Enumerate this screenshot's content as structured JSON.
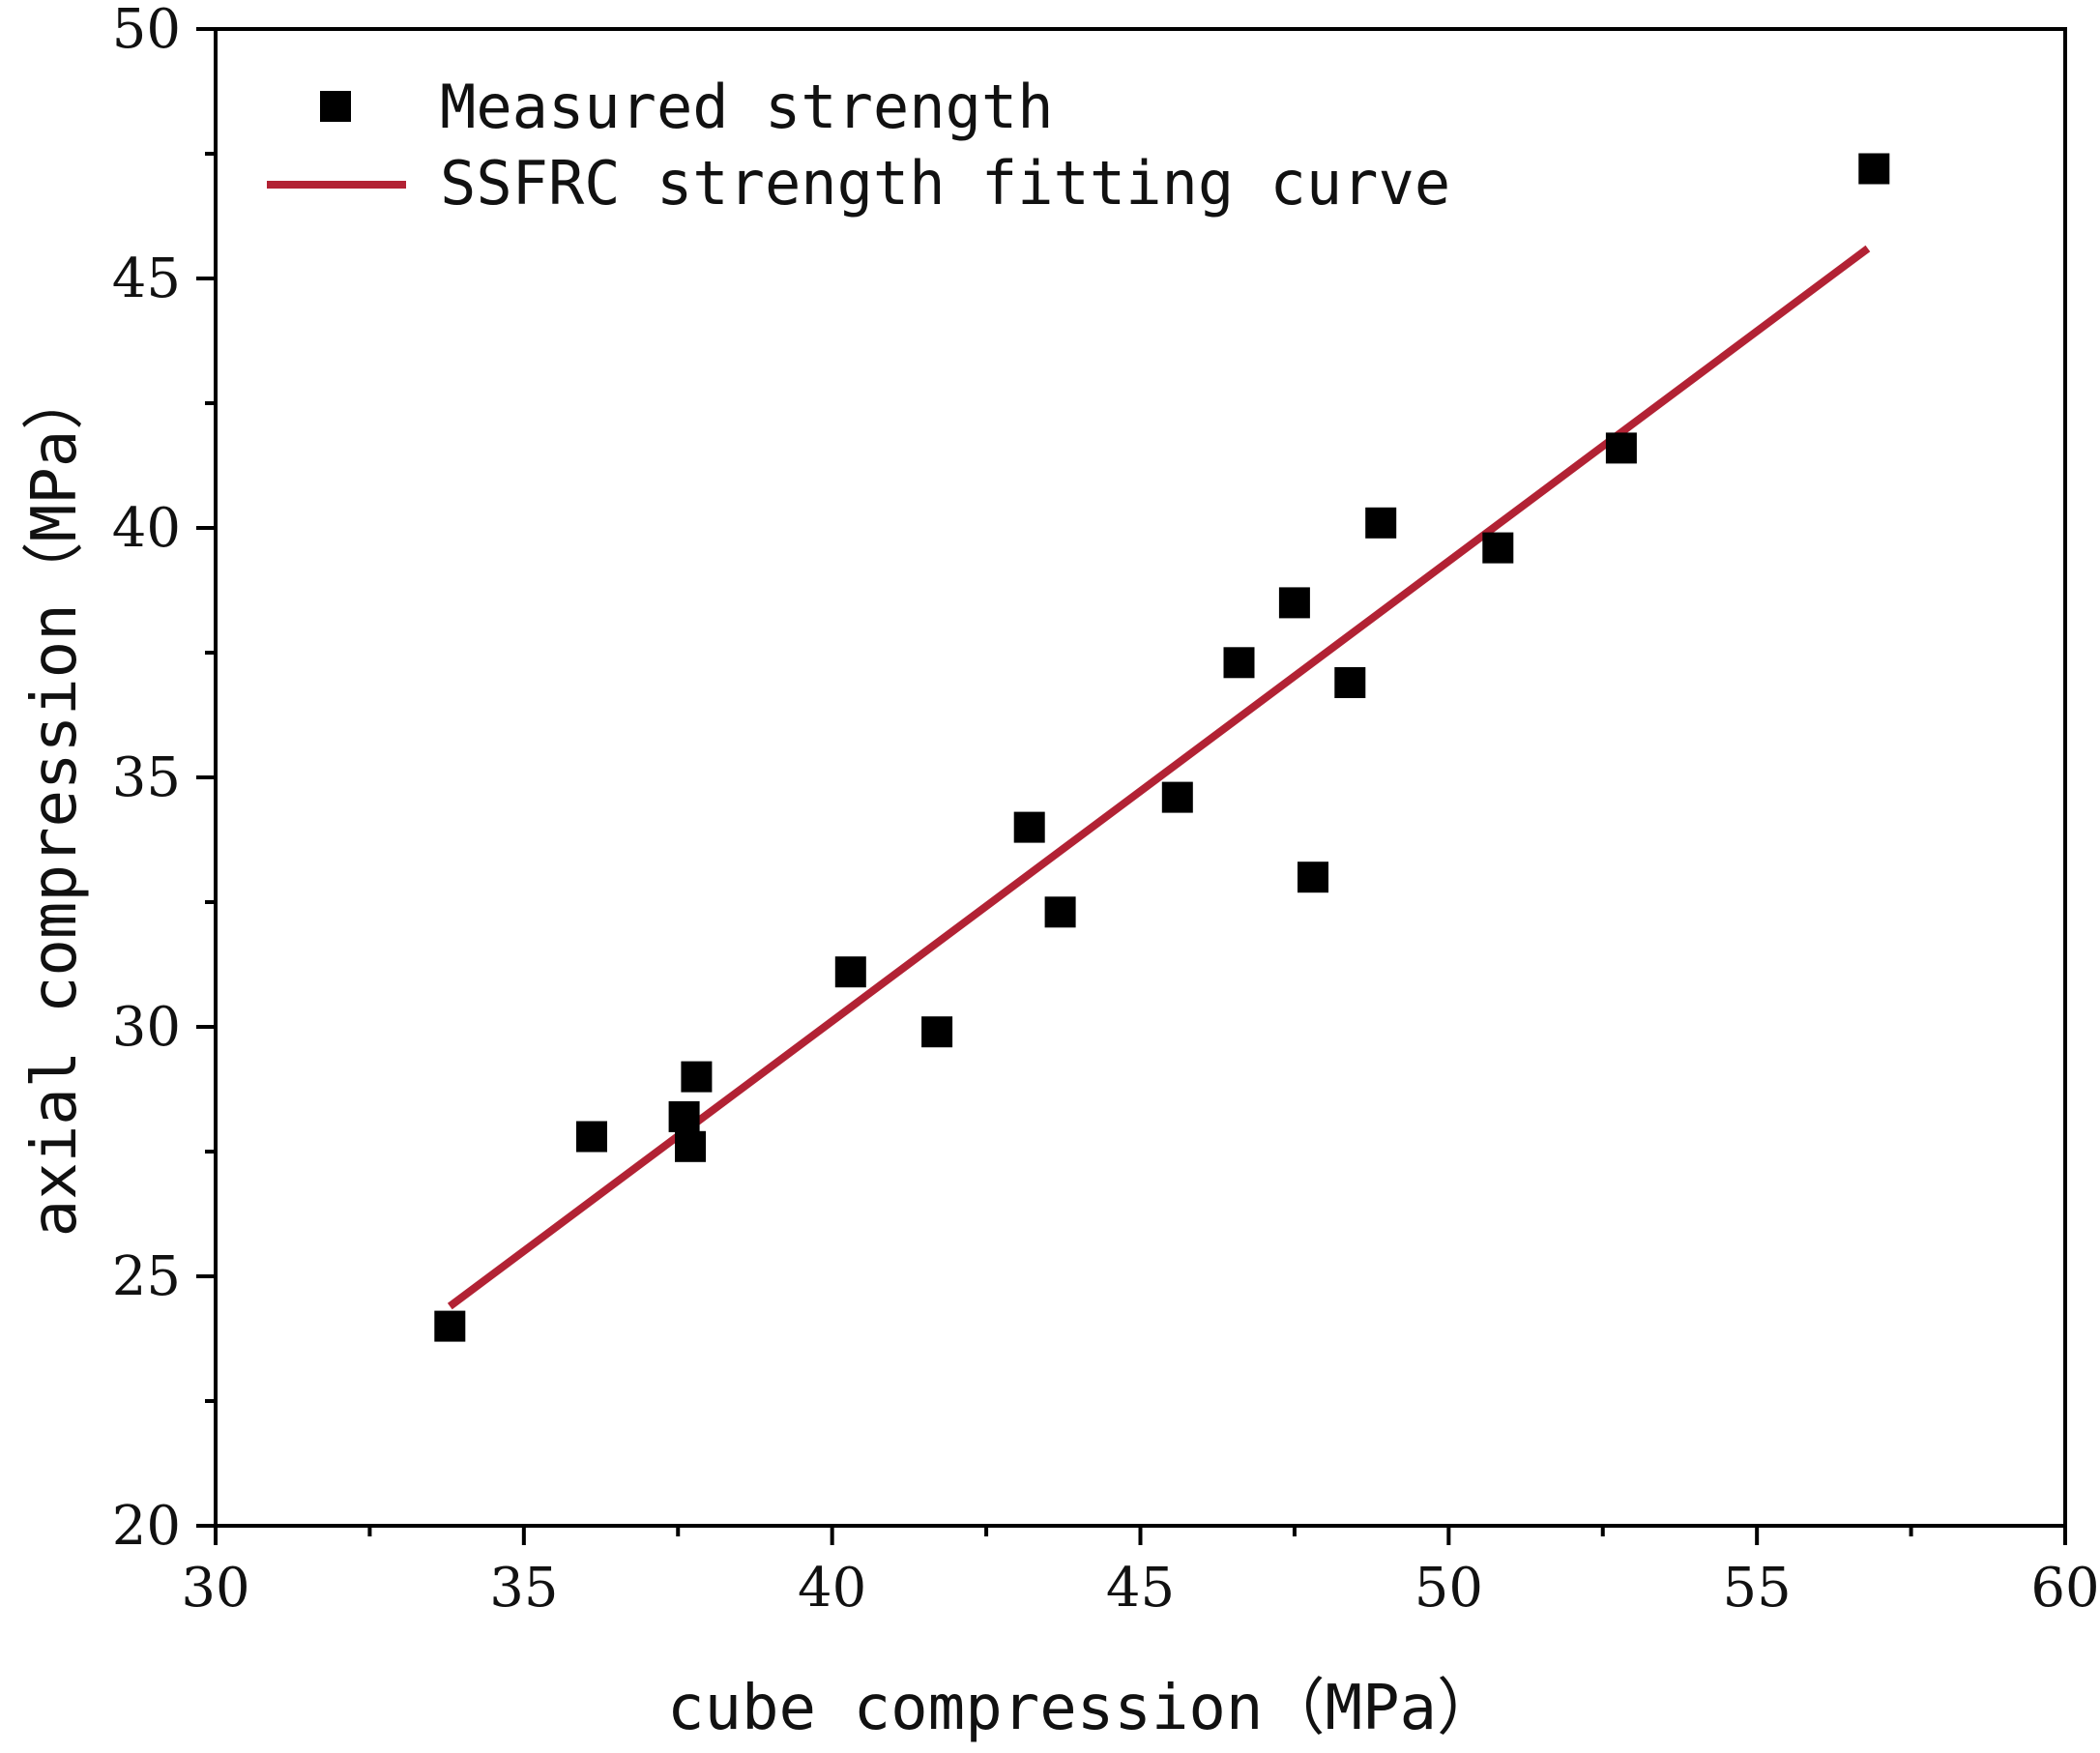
{
  "chart_data": {
    "type": "scatter",
    "title": "",
    "xlabel": "cube compression（MPa）",
    "ylabel": "axial compression（MPa）",
    "xlim": [
      30,
      60
    ],
    "ylim": [
      20,
      50
    ],
    "x_major_ticks": [
      30,
      35,
      40,
      45,
      50,
      55,
      60
    ],
    "x_tick_labels": [
      "30",
      "35",
      "40",
      "45",
      "50",
      "55",
      "60"
    ],
    "x_minor_ticks": [
      32.5,
      37.5,
      42.5,
      47.5,
      52.5,
      57.5
    ],
    "y_major_ticks": [
      20,
      25,
      30,
      35,
      40,
      45,
      50
    ],
    "y_tick_labels": [
      "20",
      "25",
      "30",
      "35",
      "40",
      "45",
      "50"
    ],
    "y_minor_ticks": [
      22.5,
      27.5,
      32.5,
      37.5,
      42.5,
      47.5
    ],
    "grid": false,
    "legend_position": "top-left",
    "series": [
      {
        "name": "Measured strength",
        "kind": "scatter",
        "marker": "square",
        "color": "#000000",
        "points": [
          {
            "x": 33.8,
            "y": 24.0
          },
          {
            "x": 36.1,
            "y": 27.8
          },
          {
            "x": 37.6,
            "y": 28.2
          },
          {
            "x": 37.7,
            "y": 27.6
          },
          {
            "x": 37.8,
            "y": 29.0
          },
          {
            "x": 40.3,
            "y": 31.1
          },
          {
            "x": 41.7,
            "y": 29.9
          },
          {
            "x": 43.2,
            "y": 34.0
          },
          {
            "x": 43.7,
            "y": 32.3
          },
          {
            "x": 45.6,
            "y": 34.6
          },
          {
            "x": 46.6,
            "y": 37.3
          },
          {
            "x": 47.5,
            "y": 38.5
          },
          {
            "x": 47.8,
            "y": 33.0
          },
          {
            "x": 48.4,
            "y": 36.9
          },
          {
            "x": 48.9,
            "y": 40.1
          },
          {
            "x": 50.8,
            "y": 39.6
          },
          {
            "x": 52.8,
            "y": 41.6
          },
          {
            "x": 56.9,
            "y": 47.2
          }
        ]
      },
      {
        "name": "SSFRC strength fitting curve",
        "kind": "line",
        "color": "#B22234",
        "points": [
          {
            "x": 33.8,
            "y": 24.4
          },
          {
            "x": 56.8,
            "y": 45.6
          }
        ]
      }
    ]
  }
}
